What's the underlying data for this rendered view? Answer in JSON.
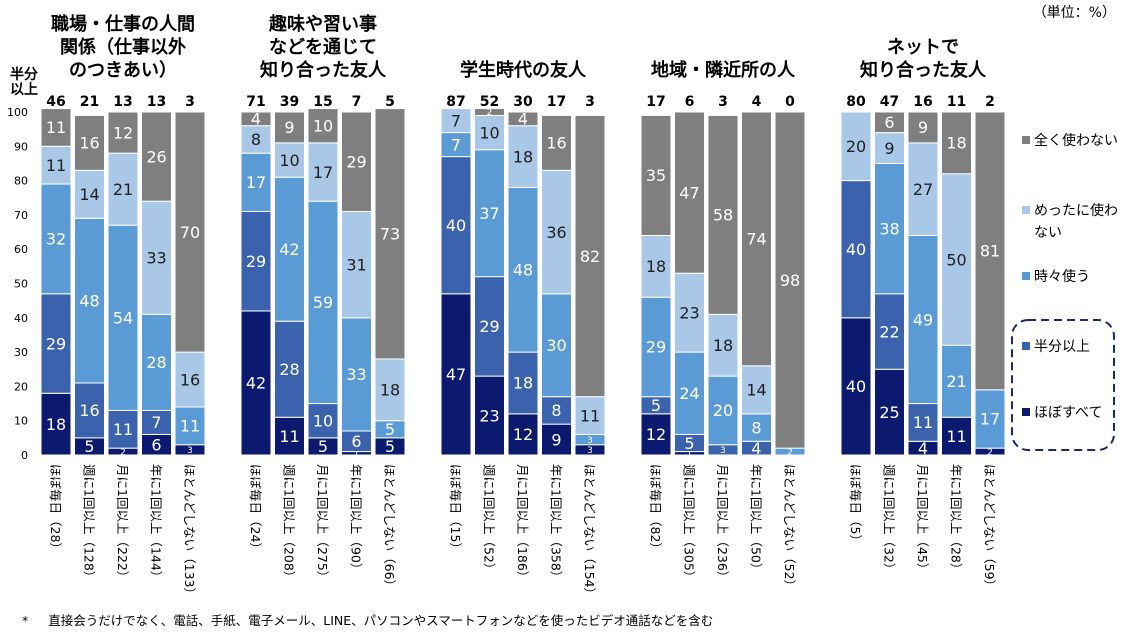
{
  "unit_label": "（単位：%）",
  "footnote_mark": "*",
  "footnote": "直接会うだけでなく、電話、手紙、電子メール、LINE、パソコンやスマートフォンなどを使ったビデオ通話などを含む",
  "hanbun_label": [
    "半分",
    "以上"
  ],
  "chart_data": {
    "type": "bar",
    "stacked": true,
    "ylim": [
      0,
      100
    ],
    "yticks": [
      0,
      10,
      20,
      30,
      40,
      50,
      60,
      70,
      80,
      90,
      100
    ],
    "colors": {
      "ほぼすべて": "#0b1a6e",
      "半分以上": "#3b62ad",
      "時々使う": "#5b9bd5",
      "めったに使わない": "#a9c8e8",
      "全く使わない": "#7f7f7f"
    },
    "legend": [
      {
        "key": "全く使わない",
        "lines": [
          "全く使わない"
        ]
      },
      {
        "key": "めったに使わない",
        "lines": [
          "めったに使わ",
          "ない"
        ]
      },
      {
        "key": "時々使う",
        "lines": [
          "時々使う"
        ]
      },
      {
        "key": "半分以上",
        "lines": [
          "半分以上"
        ]
      },
      {
        "key": "ほぼすべて",
        "lines": [
          "ほぼすべて"
        ]
      }
    ],
    "series_order": [
      "ほぼすべて",
      "半分以上",
      "時々使う",
      "めったに使わない",
      "全く使わない"
    ],
    "groups": [
      {
        "title": [
          "職場・仕事の人間",
          "関係（仕事以外",
          "のつきあい）"
        ],
        "bars": [
          {
            "label": "ほぼ毎日（28）",
            "top": "46",
            "values": [
              18,
              29,
              32,
              11,
              11
            ]
          },
          {
            "label": "週に1回以上（128）",
            "top": "21",
            "values": [
              5,
              16,
              48,
              14,
              16
            ]
          },
          {
            "label": "月に1回以上（222）",
            "top": "13",
            "values": [
              2,
              11,
              54,
              21,
              12
            ]
          },
          {
            "label": "年に1回以上（144）",
            "top": "13",
            "values": [
              6,
              7,
              28,
              33,
              26
            ]
          },
          {
            "label": "ほとんどしない（133）",
            "top": "3",
            "values": [
              3,
              0,
              11,
              16,
              70
            ]
          }
        ]
      },
      {
        "title": [
          "趣味や習い事",
          "などを通じて",
          "知り合った友人"
        ],
        "bars": [
          {
            "label": "ほぼ毎日（24）",
            "top": "71",
            "values": [
              42,
              29,
              17,
              8,
              4
            ]
          },
          {
            "label": "週に1回以上（208）",
            "top": "39",
            "values": [
              11,
              28,
              42,
              10,
              9
            ]
          },
          {
            "label": "月に1回以上（275）",
            "top": "15",
            "values": [
              5,
              10,
              59,
              17,
              10
            ]
          },
          {
            "label": "年に1回以上（90）",
            "top": "7",
            "values": [
              1,
              6,
              33,
              31,
              29
            ]
          },
          {
            "label": "ほとんどしない（66）",
            "top": "5",
            "values": [
              5,
              0,
              5,
              18,
              73
            ]
          }
        ]
      },
      {
        "title": [
          "学生時代の友人"
        ],
        "bars": [
          {
            "label": "ほぼ毎日（15）",
            "top": "87",
            "values": [
              47,
              40,
              7,
              7,
              0
            ]
          },
          {
            "label": "週に1回以上（52）",
            "top": "52",
            "values": [
              23,
              29,
              37,
              10,
              2
            ]
          },
          {
            "label": "月に1回以上（186）",
            "top": "30",
            "values": [
              12,
              18,
              48,
              18,
              4
            ]
          },
          {
            "label": "年に1回以上（358）",
            "top": "17",
            "values": [
              9,
              8,
              30,
              36,
              16
            ]
          },
          {
            "label": "ほとんどしない（154）",
            "top": "3",
            "values": [
              3,
              0,
              3,
              11,
              82
            ]
          }
        ]
      },
      {
        "title": [
          "地域・隣近所の人"
        ],
        "bars": [
          {
            "label": "ほぼ毎日（82）",
            "top": "17",
            "values": [
              12,
              5,
              29,
              18,
              35
            ]
          },
          {
            "label": "週に1回以上（305）",
            "top": "6",
            "values": [
              1,
              5,
              24,
              23,
              47
            ]
          },
          {
            "label": "月に1回以上（236）",
            "top": "3",
            "values": [
              0,
              3,
              20,
              18,
              58
            ]
          },
          {
            "label": "年に1回以上（50）",
            "top": "4",
            "values": [
              0,
              4,
              8,
              14,
              74
            ]
          },
          {
            "label": "ほとんどしない（52）",
            "top": "0",
            "values": [
              0,
              0,
              2,
              0,
              98
            ]
          }
        ]
      },
      {
        "title": [
          "ネットで",
          "知り合った友人"
        ],
        "bars": [
          {
            "label": "ほぼ毎日（5）",
            "top": "80",
            "values": [
              40,
              40,
              0,
              20,
              0
            ]
          },
          {
            "label": "週に1回以上（32）",
            "top": "47",
            "values": [
              25,
              22,
              38,
              9,
              6
            ]
          },
          {
            "label": "月に1回以上（45）",
            "top": "16",
            "values": [
              4,
              11,
              49,
              27,
              9
            ]
          },
          {
            "label": "年に1回以上（28）",
            "top": "11",
            "values": [
              11,
              0,
              21,
              50,
              18
            ]
          },
          {
            "label": "ほとんどしない（59）",
            "top": "2",
            "values": [
              2,
              0,
              17,
              0,
              81
            ]
          }
        ]
      }
    ]
  }
}
